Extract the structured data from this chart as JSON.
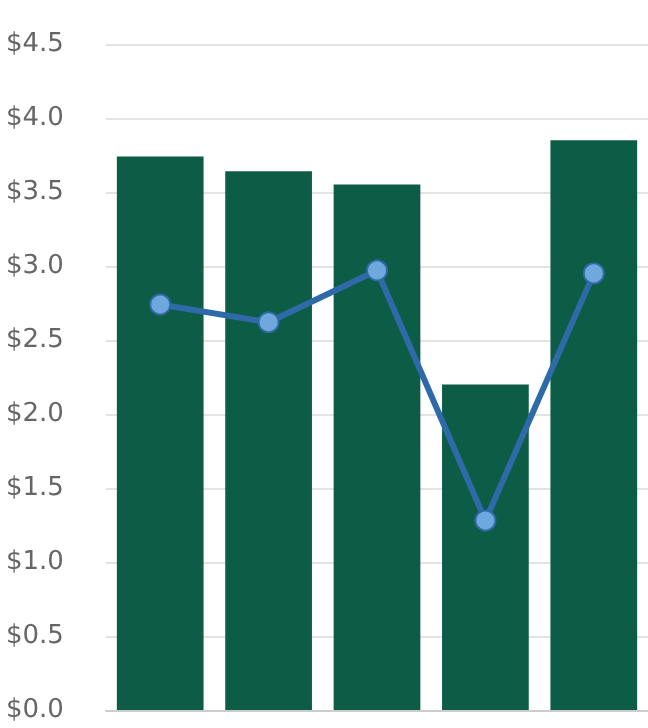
{
  "chart_data": {
    "type": "bar",
    "categories": [
      null,
      null,
      null,
      null,
      null
    ],
    "series": [
      {
        "color": "#0d5c45",
        "values": [
          3.74,
          3.64,
          3.55,
          2.2,
          3.85
        ]
      },
      {
        "type": "line",
        "color": "#2e6aa8",
        "values": [
          2.74,
          2.62,
          2.97,
          1.28,
          2.95
        ]
      }
    ],
    "ylim": [
      0,
      4.5
    ],
    "yticks": [
      {
        "value": 0,
        "label": "$0.0"
      },
      {
        "value": 0.5,
        "label": "$0.5"
      },
      {
        "value": 1,
        "label": "$1.0"
      },
      {
        "value": 1.5,
        "label": "$1.5"
      },
      {
        "value": 2,
        "label": "$2.0"
      },
      {
        "value": 2.5,
        "label": "$2.5"
      },
      {
        "value": 3,
        "label": "$3.0"
      },
      {
        "value": 3.5,
        "label": "$3.5"
      },
      {
        "value": 4,
        "label": "$4.0"
      },
      {
        "value": 4.5,
        "label": "$4.5"
      }
    ],
    "grid": "y",
    "marker": "circle",
    "line_style": "solid"
  }
}
